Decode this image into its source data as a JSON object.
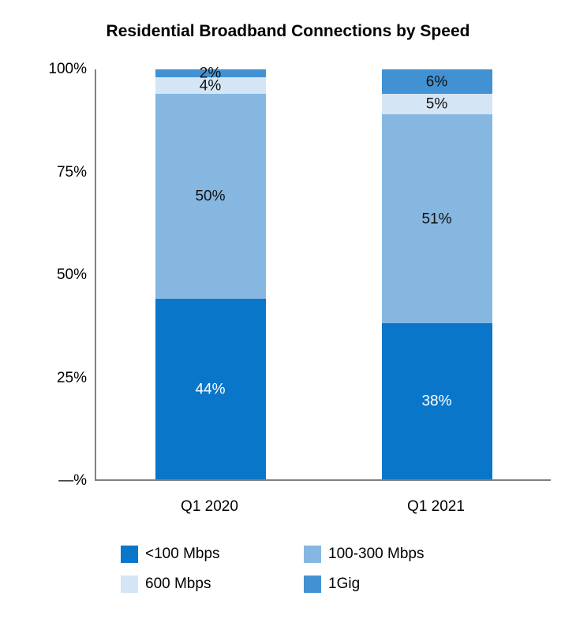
{
  "chart_data": {
    "type": "bar",
    "stacked": true,
    "title": "Residential Broadband Connections by Speed",
    "categories": [
      "Q1 2020",
      "Q1 2021"
    ],
    "series": [
      {
        "name": "<100 Mbps",
        "values": [
          44,
          38
        ],
        "color": "#0a76c9",
        "label_color": "#ffffff"
      },
      {
        "name": "100-300 Mbps",
        "values": [
          50,
          51
        ],
        "color": "#85b7e1",
        "label_color": "#111111"
      },
      {
        "name": "600 Mbps",
        "values": [
          4,
          5
        ],
        "color": "#d4e6f5",
        "label_color": "#111111"
      },
      {
        "name": "1Gig",
        "values": [
          2,
          6
        ],
        "color": "#4292d3",
        "label_color": "#111111"
      }
    ],
    "y_ticks": [
      "100%",
      "75%",
      "50%",
      "25%",
      "—%"
    ],
    "ylim": [
      0,
      100
    ],
    "value_suffix": "%",
    "legend_position": "bottom",
    "grid": false
  }
}
